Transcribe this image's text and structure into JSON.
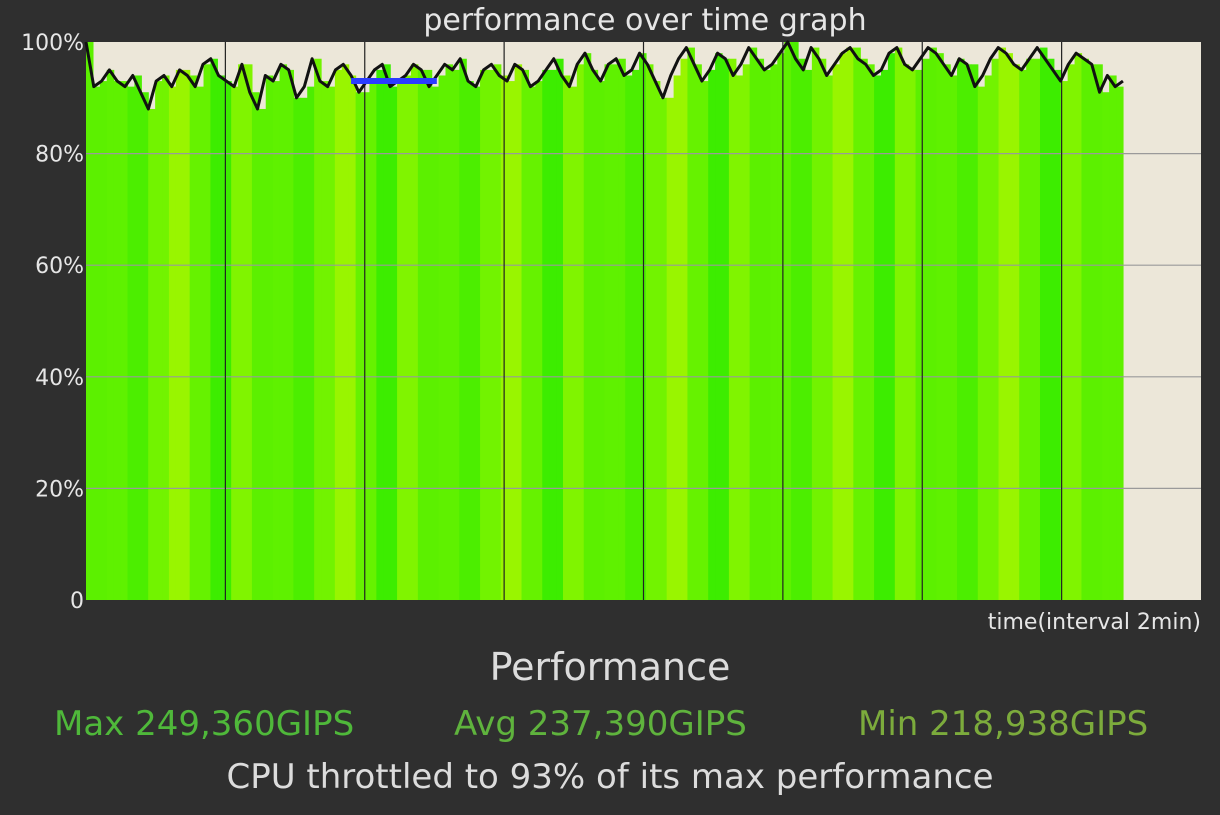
{
  "chart_data": {
    "type": "area",
    "title": "performance over time graph",
    "xlabel": "time(interval 2min)",
    "ylabel": "",
    "ylim": [
      0,
      100
    ],
    "y_ticks": [
      {
        "value": 0,
        "label": "0"
      },
      {
        "value": 20,
        "label": "20%"
      },
      {
        "value": 40,
        "label": "40%"
      },
      {
        "value": 60,
        "label": "60%"
      },
      {
        "value": 80,
        "label": "80%"
      },
      {
        "value": 100,
        "label": "100%"
      }
    ],
    "x_interval_count": 8,
    "grid": true,
    "data_extent_fraction": 0.93,
    "series": [
      {
        "values": [
          100,
          92,
          93,
          95,
          93,
          92,
          94,
          91,
          88,
          93,
          94,
          92,
          95,
          94,
          92,
          96,
          97,
          94,
          93,
          92,
          96,
          91,
          88,
          94,
          93,
          96,
          95,
          90,
          92,
          97,
          93,
          92,
          95,
          96,
          94,
          91,
          93,
          95,
          96,
          92,
          93,
          94,
          96,
          95,
          92,
          94,
          96,
          95,
          97,
          93,
          92,
          95,
          96,
          94,
          93,
          96,
          95,
          92,
          93,
          95,
          97,
          94,
          92,
          96,
          98,
          95,
          93,
          96,
          97,
          94,
          95,
          98,
          96,
          93,
          90,
          94,
          97,
          99,
          96,
          93,
          95,
          98,
          97,
          94,
          96,
          99,
          97,
          95,
          96,
          98,
          100,
          97,
          95,
          99,
          97,
          94,
          96,
          98,
          99,
          97,
          96,
          94,
          95,
          98,
          99,
          96,
          95,
          97,
          99,
          98,
          96,
          94,
          97,
          96,
          92,
          94,
          97,
          99,
          98,
          96,
          95,
          97,
          99,
          97,
          95,
          93,
          96,
          98,
          97,
          96,
          91,
          94,
          92,
          93
        ],
        "color": "#111111"
      }
    ],
    "highlight": {
      "from_index": 34,
      "to_index": 45,
      "value": 93,
      "color": "#2a3cff"
    },
    "fill_colors": [
      "#5cf000",
      "#66f200",
      "#4cee00",
      "#80f400",
      "#99f500",
      "#5ff100",
      "#3ded00",
      "#72f300"
    ],
    "plot_background": "#ece7d9",
    "grid_color": "#9a9a9a",
    "divider_color": "#222222"
  },
  "stats": {
    "heading": "Performance",
    "max_label": "Max 249,360GIPS",
    "avg_label": "Avg 237,390GIPS",
    "min_label": "Min 218,938GIPS",
    "summary": "CPU throttled to 93% of its max performance"
  }
}
